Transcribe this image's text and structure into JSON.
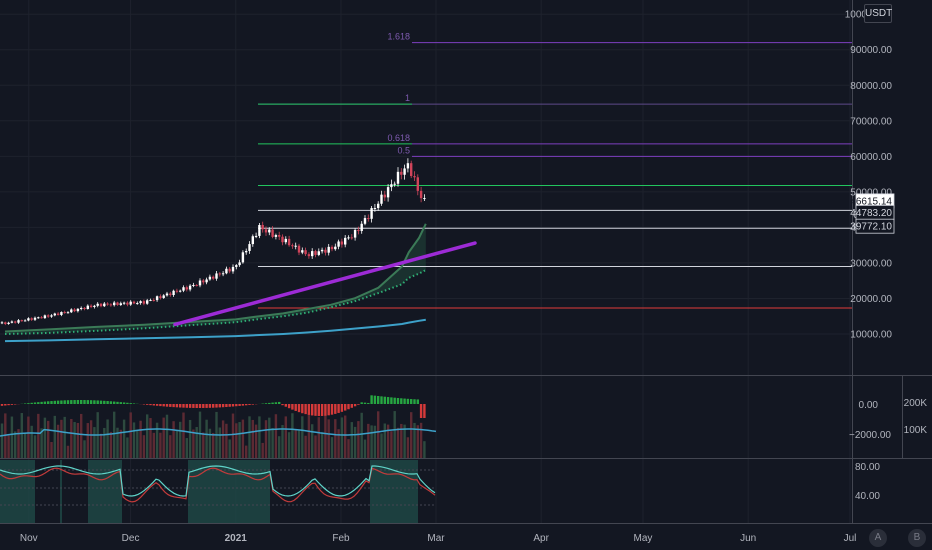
{
  "currency_badge": "USDT",
  "scale_buttons": [
    "A",
    "B"
  ],
  "colors": {
    "background": "#131722",
    "up": "#ffffff",
    "down": "#d1445a",
    "grid": "#1e222d",
    "fib_green": "#22c55e",
    "fib_purple": "#7e3fc0",
    "trend": "#9d2bd6",
    "ma_blue": "#3da1c9",
    "ma_green": "#3b7a57",
    "ma_dotted": "#2fae75",
    "red_line": "#e23b3b"
  },
  "chart_data": [
    {
      "type": "line",
      "title": "",
      "x": [
        "2020-10-25",
        "2020-11-07",
        "2020-11-21",
        "2020-12-05",
        "2020-12-19",
        "2021-01-01",
        "2021-01-08",
        "2021-01-15",
        "2021-01-22",
        "2021-01-29",
        "2021-02-05",
        "2021-02-12",
        "2021-02-19",
        "2021-02-21",
        "2021-02-24",
        "2021-02-26"
      ],
      "series": [
        {
          "name": "",
          "kind": "candles-close",
          "values": [
            13100,
            15300,
            18400,
            19200,
            23800,
            29300,
            40500,
            36800,
            32500,
            34200,
            38400,
            47200,
            56000,
            57500,
            49600,
            46615
          ]
        },
        {
          "name": "",
          "kind": "moving-average",
          "values": [
            10700,
            11300,
            12000,
            12600,
            13400,
            14100,
            15000,
            15800,
            17000,
            18200,
            20000,
            23000,
            29000,
            33000,
            37000,
            41000
          ]
        },
        {
          "name": "",
          "kind": "moving-average-dotted",
          "values": [
            10000,
            10300,
            10900,
            11600,
            12500,
            13300,
            14200,
            15000,
            16000,
            17500,
            19200,
            21500,
            24000,
            25800,
            27000,
            28000
          ]
        },
        {
          "name": "",
          "kind": "long-moving-average",
          "values": [
            8000,
            8200,
            8500,
            8800,
            9100,
            9400,
            9700,
            10000,
            10400,
            10900,
            11500,
            12100,
            12800,
            13200,
            13700,
            14000
          ]
        }
      ],
      "price_levels": [
        {
          "label": "1.618",
          "value": 92000
        },
        {
          "label": "1",
          "value": 74700
        },
        {
          "label": "0.618",
          "value": 63500
        },
        {
          "label": "0.5",
          "value": 60000
        },
        {
          "label": "",
          "value": 51800
        },
        {
          "label": "",
          "value": 44783.2
        },
        {
          "label": "",
          "value": 39772.1
        },
        {
          "label": "",
          "value": 29000
        },
        {
          "label": "",
          "value": 17300
        }
      ],
      "price_axis_ticks": [
        "100000.00",
        "90000.00",
        "80000.00",
        "70000.00",
        "60000.00",
        "50000.00",
        "40000.00",
        "30000.00",
        "20000.00",
        "10000.00"
      ],
      "price_markers": {
        "last_price": "46615.14",
        "countdown": "08:02:46",
        "level_1": "44783.20",
        "level_2": "39772.10"
      },
      "ylim": [
        0,
        105000
      ]
    },
    {
      "type": "bar",
      "title": "",
      "histogram_ticks": [
        "0.00",
        "−2000.00"
      ],
      "volume_ticks": [
        "200K",
        "100K"
      ]
    },
    {
      "type": "area",
      "title": "",
      "oscillator_ticks": [
        "80.00",
        "40.00"
      ]
    }
  ],
  "time_axis": [
    "Nov",
    "Dec",
    "2021",
    "Feb",
    "Mar",
    "Apr",
    "May",
    "Jun",
    "Jul"
  ]
}
